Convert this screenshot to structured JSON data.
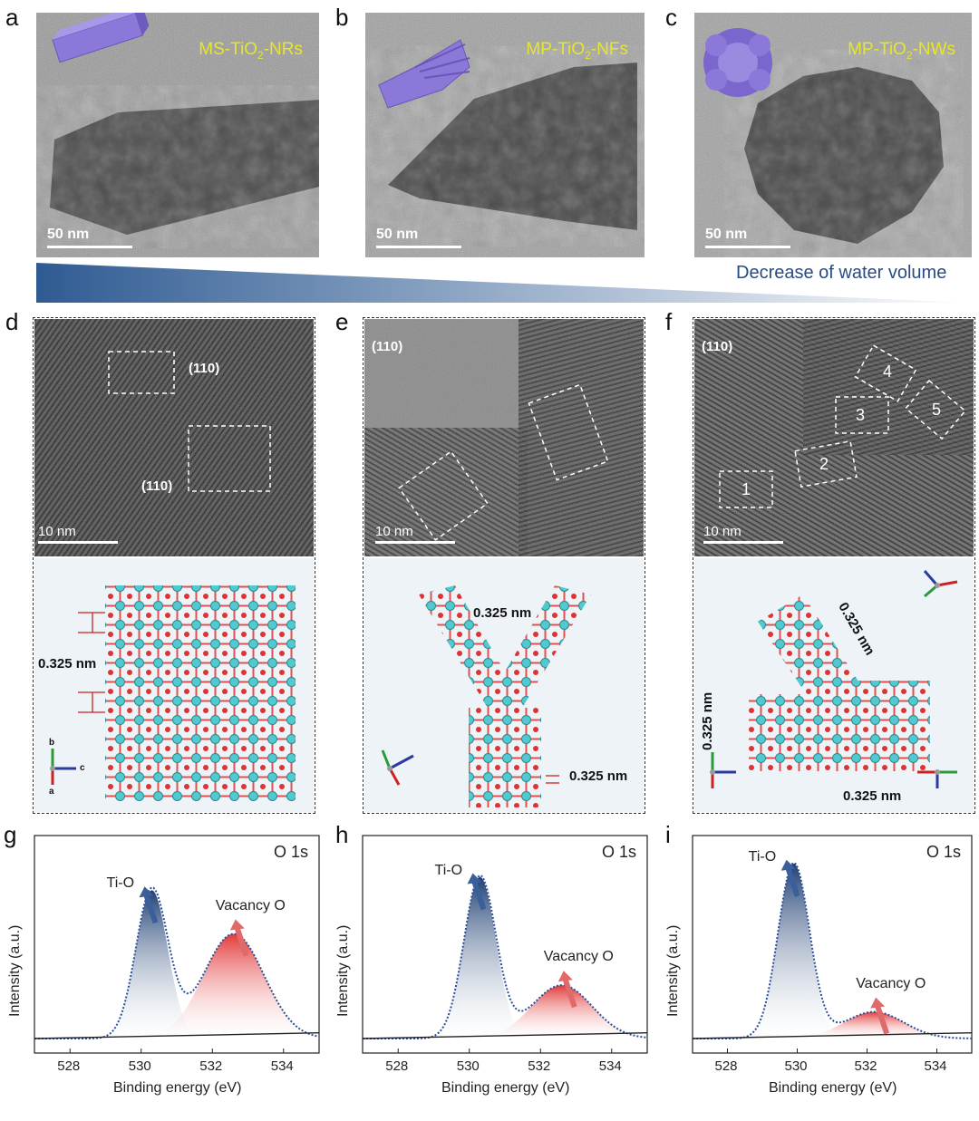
{
  "panels": {
    "a": {
      "label": "a",
      "title_main": "MS-TiO",
      "title_sub": "2",
      "title_end": "-NRs",
      "scale": "50 nm"
    },
    "b": {
      "label": "b",
      "title_main": "MP-TiO",
      "title_sub": "2",
      "title_end": "-NFs",
      "scale": "50 nm"
    },
    "c": {
      "label": "c",
      "title_main": "MP-TiO",
      "title_sub": "2",
      "title_end": "-NWs",
      "scale": "50 nm"
    },
    "d": {
      "label": "d",
      "plane1": "(110)",
      "plane2": "(110)",
      "scale": "10 nm",
      "spacing": "0.325 nm"
    },
    "e": {
      "label": "e",
      "plane": "(110)",
      "scale": "10 nm",
      "spacing1": "0.325 nm",
      "spacing2": "0.325 nm"
    },
    "f": {
      "label": "f",
      "plane": "(110)",
      "scale": "10 nm",
      "regions": [
        "1",
        "2",
        "3",
        "4",
        "5"
      ],
      "spacing1": "0.325 nm",
      "spacing2": "0.325 nm",
      "spacing3": "0.325 nm"
    },
    "g": {
      "label": "g"
    },
    "h": {
      "label": "h"
    },
    "i": {
      "label": "i"
    }
  },
  "water_label": "Decrease of water volume",
  "axes": {
    "b": "b",
    "c": "c",
    "a": "a"
  },
  "xps": {
    "core_level": "O 1s",
    "ti_o": "Ti-O",
    "vacancy": "Vacancy O",
    "xlabel": "Binding energy (eV)",
    "ylabel": "Intensity (a.u.)",
    "ticks": [
      "528",
      "530",
      "532",
      "534"
    ]
  },
  "chart_data": [
    {
      "type": "line",
      "title": "g O 1s",
      "xlabel": "Binding energy (eV)",
      "ylabel": "Intensity (a.u.)",
      "xlim": [
        527,
        535
      ],
      "series": [
        {
          "name": "Ti-O",
          "peak_center": 530.3,
          "relative_height": 0.78
        },
        {
          "name": "Vacancy O",
          "peak_center": 532.6,
          "relative_height": 0.55
        }
      ]
    },
    {
      "type": "line",
      "title": "h O 1s",
      "xlabel": "Binding energy (eV)",
      "ylabel": "Intensity (a.u.)",
      "xlim": [
        527,
        535
      ],
      "series": [
        {
          "name": "Ti-O",
          "peak_center": 530.3,
          "relative_height": 0.85
        },
        {
          "name": "Vacancy O",
          "peak_center": 532.6,
          "relative_height": 0.28
        }
      ]
    },
    {
      "type": "line",
      "title": "i O 1s",
      "xlabel": "Binding energy (eV)",
      "ylabel": "Intensity (a.u.)",
      "xlim": [
        527,
        535
      ],
      "series": [
        {
          "name": "Ti-O",
          "peak_center": 529.9,
          "relative_height": 0.92
        },
        {
          "name": "Vacancy O",
          "peak_center": 532.2,
          "relative_height": 0.14
        }
      ]
    }
  ]
}
